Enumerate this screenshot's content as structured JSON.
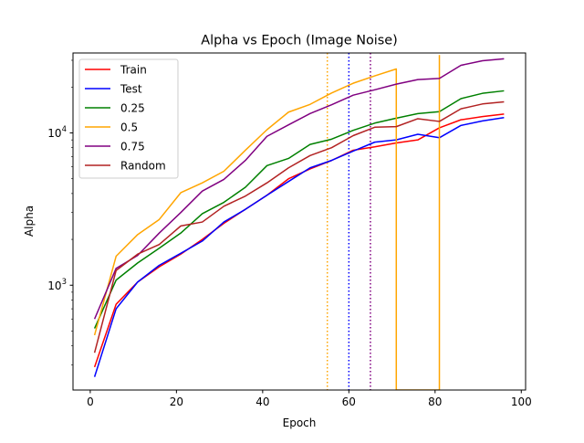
{
  "chart_data": {
    "type": "line",
    "title": "Alpha vs Epoch (Image Noise)",
    "xlabel": "Epoch",
    "ylabel": "Alpha",
    "xlim": [
      -4,
      101
    ],
    "ylim": [
      205,
      33500
    ],
    "yscale": "log",
    "x_ticks": [
      0,
      20,
      40,
      60,
      80,
      100
    ],
    "y_ticks": [
      {
        "value": 1000,
        "base": "10",
        "exp": "3"
      },
      {
        "value": 10000,
        "base": "10",
        "exp": "4"
      }
    ],
    "grid": false,
    "legend": {
      "position": "top-left"
    },
    "series": [
      {
        "name": "Train",
        "color": "#ff0000",
        "x": [
          1,
          6,
          11,
          16,
          21,
          26,
          31,
          36,
          41,
          46,
          51,
          56,
          61,
          66,
          71,
          76,
          81,
          86,
          91,
          96
        ],
        "y": [
          290,
          750,
          1050,
          1320,
          1600,
          2000,
          2550,
          3150,
          3900,
          5000,
          5800,
          6600,
          7700,
          8100,
          8600,
          9000,
          10800,
          12200,
          12800,
          13300
        ]
      },
      {
        "name": "Test",
        "color": "#0000ff",
        "x": [
          1,
          6,
          11,
          16,
          21,
          26,
          31,
          36,
          41,
          46,
          51,
          56,
          61,
          66,
          71,
          76,
          81,
          86,
          91,
          96
        ],
        "y": [
          250,
          700,
          1050,
          1350,
          1620,
          1950,
          2600,
          3150,
          3900,
          4800,
          5900,
          6600,
          7600,
          8700,
          9000,
          9800,
          9300,
          11200,
          12000,
          12600
        ]
      },
      {
        "name": "0.25",
        "color": "#008000",
        "x": [
          1,
          6,
          11,
          16,
          21,
          26,
          31,
          36,
          41,
          46,
          51,
          56,
          61,
          66,
          71,
          76,
          81,
          86,
          91,
          96
        ],
        "y": [
          520,
          1080,
          1400,
          1750,
          2200,
          2950,
          3500,
          4400,
          6100,
          6800,
          8400,
          9100,
          10400,
          11600,
          12500,
          13400,
          13800,
          16800,
          18200,
          18900
        ]
      },
      {
        "name": "0.5",
        "color": "#ffa500",
        "x": [
          1,
          6,
          11,
          16,
          21,
          26,
          31,
          36,
          41,
          46,
          51,
          56,
          61,
          66,
          71,
          71,
          81,
          81
        ],
        "y": [
          470,
          1550,
          2150,
          2700,
          4050,
          4700,
          5600,
          7700,
          10500,
          13700,
          15400,
          18300,
          21200,
          23700,
          26300,
          205,
          205,
          32500
        ]
      },
      {
        "name": "0.75",
        "color": "#800080",
        "x": [
          1,
          6,
          11,
          16,
          21,
          26,
          31,
          36,
          41,
          46,
          51,
          56,
          61,
          66,
          71,
          76,
          81,
          86,
          91,
          96
        ],
        "y": [
          600,
          1290,
          1570,
          2200,
          3000,
          4150,
          4950,
          6600,
          9500,
          11300,
          13400,
          15300,
          17700,
          19200,
          20900,
          22400,
          22800,
          27800,
          29800,
          30700
        ]
      },
      {
        "name": "Random",
        "color": "#b22222",
        "x": [
          1,
          6,
          11,
          16,
          21,
          26,
          31,
          36,
          41,
          46,
          51,
          56,
          61,
          66,
          71,
          76,
          81,
          86,
          91,
          96
        ],
        "y": [
          360,
          1250,
          1600,
          1850,
          2450,
          2600,
          3300,
          3850,
          4700,
          5900,
          7100,
          8000,
          9600,
          10900,
          11000,
          12400,
          11900,
          14400,
          15500,
          16000
        ]
      }
    ],
    "vlines": [
      {
        "x": 55,
        "color": "#ffa500",
        "style": "dotted"
      },
      {
        "x": 60,
        "color": "#0000ff",
        "style": "dotted"
      },
      {
        "x": 65,
        "color": "#800080",
        "style": "dotted"
      }
    ]
  }
}
